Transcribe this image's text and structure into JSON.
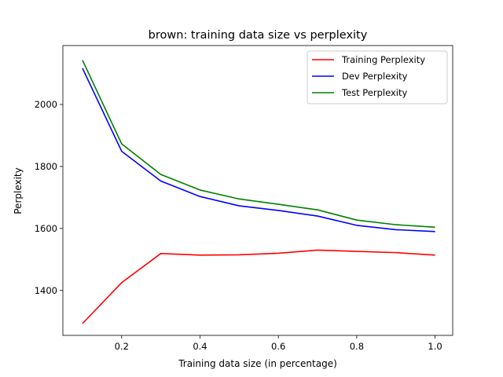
{
  "chart_data": {
    "type": "line",
    "title": "brown: training data size vs perplexity",
    "xlabel": "Training data size (in percentage)",
    "ylabel": "Perplexity",
    "x": [
      0.1,
      0.2,
      0.3,
      0.4,
      0.5,
      0.6,
      0.7,
      0.8,
      0.9,
      1.0
    ],
    "xlim": [
      0.05,
      1.045
    ],
    "ylim": [
      1255,
      2190
    ],
    "xticks": [
      0.2,
      0.4,
      0.6,
      0.8,
      1.0
    ],
    "xtick_labels": [
      "0.2",
      "0.4",
      "0.6",
      "0.8",
      "1.0"
    ],
    "yticks": [
      1400,
      1600,
      1800,
      2000
    ],
    "ytick_labels": [
      "1400",
      "1600",
      "1800",
      "2000"
    ],
    "grid": false,
    "legend_position": "top-right",
    "series": [
      {
        "name": "Training Perplexity",
        "color": "#ff0000",
        "values": [
          1293,
          1425,
          1519,
          1514,
          1515,
          1520,
          1530,
          1526,
          1522,
          1514
        ]
      },
      {
        "name": "Dev Perplexity",
        "color": "#0000ff",
        "values": [
          2117,
          1849,
          1753,
          1703,
          1673,
          1658,
          1640,
          1610,
          1596,
          1590
        ]
      },
      {
        "name": "Test Perplexity",
        "color": "#008000",
        "values": [
          2143,
          1873,
          1774,
          1724,
          1695,
          1678,
          1660,
          1627,
          1612,
          1604
        ]
      }
    ]
  }
}
